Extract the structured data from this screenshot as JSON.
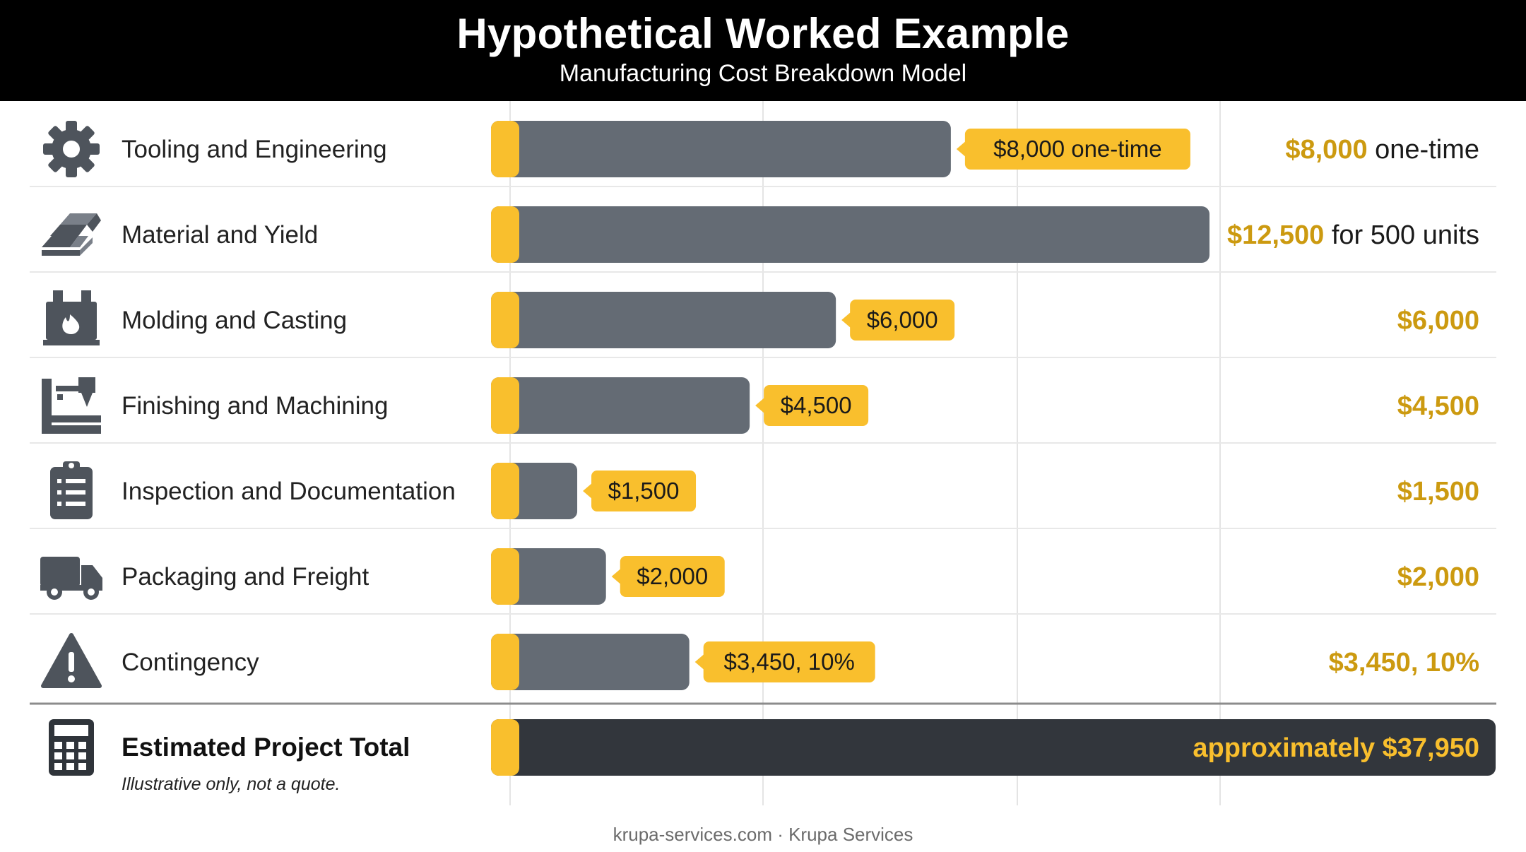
{
  "header": {
    "title": "Hypothetical Worked Example",
    "subtitle": "Manufacturing Cost Breakdown Model"
  },
  "colors": {
    "bar": "#646b74",
    "total_bar": "#32363c",
    "accent": "#f9bf2d",
    "value_text": "#cc9a10",
    "label_text": "#222222",
    "grid": "#e4e4e4",
    "icon": "#4e545c"
  },
  "chart_data": {
    "type": "bar",
    "orientation": "horizontal",
    "grid": true,
    "xlim": [
      0,
      12500
    ],
    "categories": [
      "Tooling and Engineering",
      "Material and Yield",
      "Molding and Casting",
      "Finishing and Machining",
      "Inspection and Documentation",
      "Packaging and Freight",
      "Contingency"
    ],
    "values": [
      8000,
      12500,
      6000,
      4500,
      1500,
      2000,
      3450
    ],
    "icons": [
      "gear-icon",
      "ingots-icon",
      "furnace-icon",
      "machining-icon",
      "clipboard-icon",
      "truck-icon",
      "warning-icon"
    ],
    "bar_labels": [
      "$8,000 one-time",
      "",
      "$6,000",
      "$4,500",
      "$1,500",
      "$2,000",
      "$3,450, 10%"
    ],
    "right_values": [
      {
        "amount": "$8,000",
        "note": "one-time"
      },
      {
        "amount": "$12,500",
        "note": "for 500 units"
      },
      {
        "amount": "$6,000",
        "note": ""
      },
      {
        "amount": "$4,500",
        "note": ""
      },
      {
        "amount": "$1,500",
        "note": ""
      },
      {
        "amount": "$2,000",
        "note": ""
      },
      {
        "amount": "$3,450, 10%",
        "note": ""
      }
    ],
    "total": {
      "label": "Estimated Project Total",
      "note": "Illustrative only, not a quote.",
      "value": 37950,
      "value_label": "approximately $37,950",
      "icon": "calculator-icon"
    }
  },
  "footer": "krupa-services.com · Krupa Services"
}
